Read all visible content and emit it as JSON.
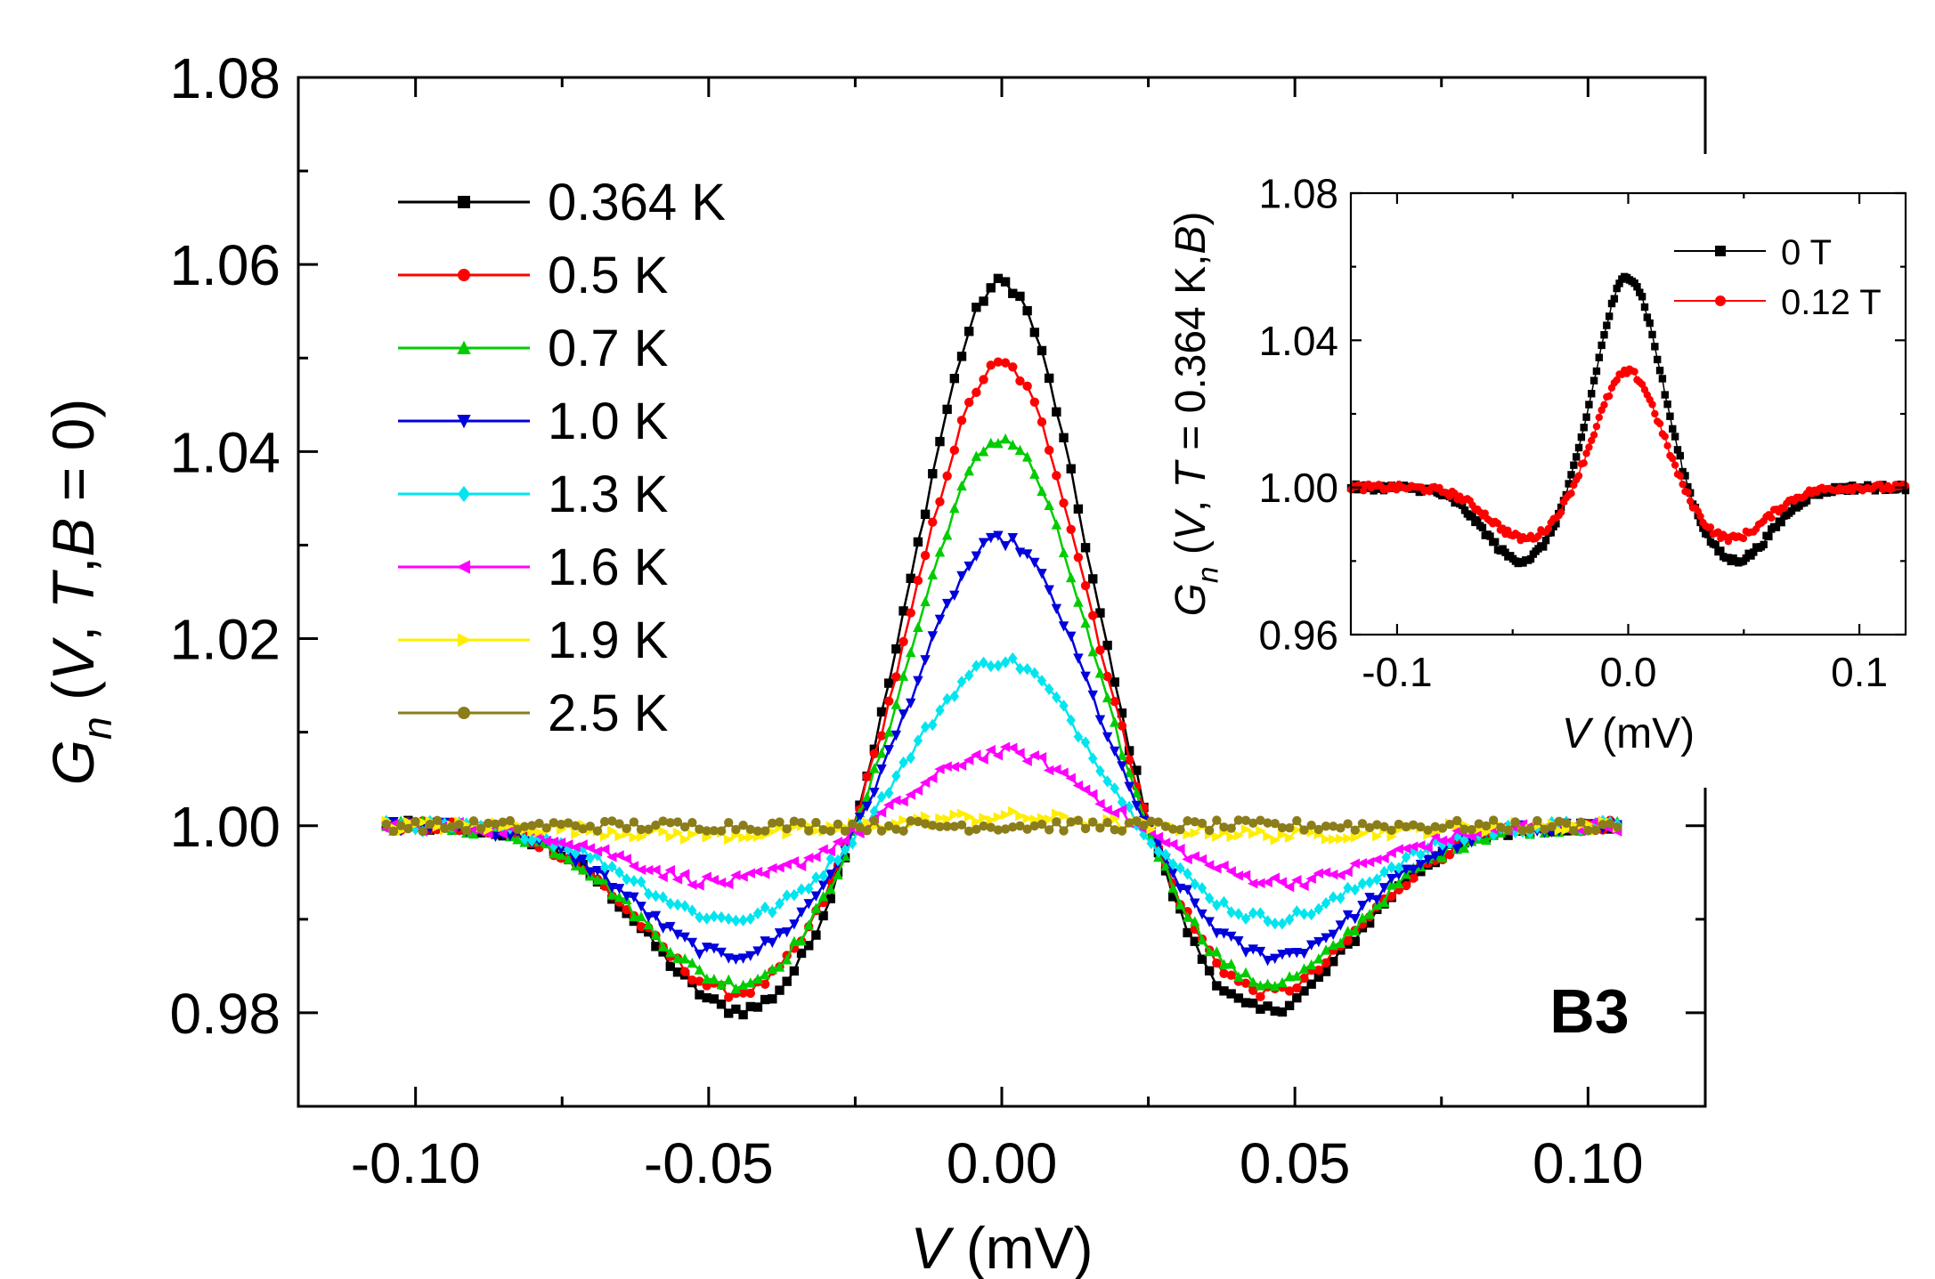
{
  "chart_data": [
    {
      "id": "main",
      "type": "scatter",
      "xlabel": {
        "var": "V",
        "unit": " (mV)"
      },
      "ylabel": {
        "var": "G",
        "sub": "n",
        "args": [
          {
            "t": " (",
            "i": false
          },
          {
            "t": "V",
            "i": true
          },
          {
            "t": ", ",
            "i": false
          },
          {
            "t": "T",
            "i": true
          },
          {
            "t": ",",
            "i": false
          },
          {
            "t": "B",
            "i": true
          },
          {
            "t": " = 0)",
            "i": false
          }
        ]
      },
      "xlim": [
        -0.12,
        0.12
      ],
      "ylim": [
        0.97,
        1.08
      ],
      "xticks": [
        -0.1,
        -0.05,
        0.0,
        0.05,
        0.1
      ],
      "xtick_labels": [
        "-0.10",
        "-0.05",
        "0.00",
        "0.05",
        "0.10"
      ],
      "yticks": [
        0.98,
        1.0,
        1.02,
        1.04,
        1.06,
        1.08
      ],
      "ytick_labels": [
        "0.98",
        "1.00",
        "1.02",
        "1.04",
        "1.06",
        "1.08"
      ],
      "annotation": "B3",
      "x_range": [
        -0.105,
        0.105
      ],
      "series": [
        {
          "name": "0.364 K",
          "color": "#000000",
          "marker": "square",
          "peak": 1.059,
          "dip": 0.98,
          "dip_pos": 0.044
        },
        {
          "name": "0.5 K",
          "color": "#ff0000",
          "marker": "circle",
          "peak": 1.05,
          "dip": 0.982,
          "dip_pos": 0.045
        },
        {
          "name": "0.7 K",
          "color": "#00cc00",
          "marker": "triangle-up",
          "peak": 1.042,
          "dip": 0.983,
          "dip_pos": 0.045
        },
        {
          "name": "1.0 K",
          "color": "#0000dd",
          "marker": "triangle-down",
          "peak": 1.031,
          "dip": 0.986,
          "dip_pos": 0.046
        },
        {
          "name": "1.3 K",
          "color": "#00e5ee",
          "marker": "diamond",
          "peak": 1.018,
          "dip": 0.99,
          "dip_pos": 0.046
        },
        {
          "name": "1.6 K",
          "color": "#ff00ff",
          "marker": "triangle-left",
          "peak": 1.008,
          "dip": 0.994,
          "dip_pos": 0.048
        },
        {
          "name": "1.9 K",
          "color": "#ffee00",
          "marker": "triangle-right",
          "peak": 1.001,
          "dip": 0.999,
          "dip_pos": 0.05
        },
        {
          "name": "2.5 K",
          "color": "#8b7d1a",
          "marker": "hexagon",
          "peak": 1.0,
          "dip": 1.0,
          "dip_pos": 0.05
        }
      ]
    },
    {
      "id": "inset",
      "type": "scatter",
      "xlabel": {
        "var": "V",
        "unit": " (mV)"
      },
      "ylabel": {
        "var": "G",
        "sub": "n",
        "args": [
          {
            "t": " (",
            "i": false
          },
          {
            "t": "V",
            "i": true
          },
          {
            "t": ", ",
            "i": false
          },
          {
            "t": "T",
            "i": true
          },
          {
            "t": " = 0.364 K,",
            "i": false
          },
          {
            "t": "B",
            "i": true
          },
          {
            "t": ")",
            "i": false
          }
        ]
      },
      "xlim": [
        -0.12,
        0.12
      ],
      "ylim": [
        0.96,
        1.08
      ],
      "xticks": [
        -0.1,
        0.0,
        0.1
      ],
      "xtick_labels": [
        "-0.1",
        "0.0",
        "0.1"
      ],
      "yticks": [
        0.96,
        1.0,
        1.04,
        1.08
      ],
      "ytick_labels": [
        "0.96",
        "1.00",
        "1.04",
        "1.08"
      ],
      "x_range": [
        -0.12,
        0.12
      ],
      "series": [
        {
          "name": "0 T",
          "color": "#000000",
          "marker": "square",
          "peak": 1.058,
          "dip": 0.98,
          "dip_pos": 0.046
        },
        {
          "name": "0.12 T",
          "color": "#ff0000",
          "marker": "circle",
          "peak": 1.032,
          "dip": 0.986,
          "dip_pos": 0.044
        }
      ]
    }
  ]
}
